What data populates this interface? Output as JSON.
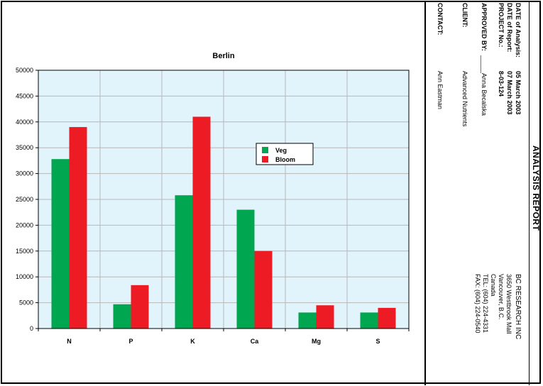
{
  "report": {
    "title": "ANALYSIS REPORT",
    "company": {
      "name": "BC RESEARCH INC",
      "address1": "3650 Westbrook Mall",
      "address2": "Vancouver, B.C.",
      "country": "Canada",
      "tel": "TEL: (604) 224-4331",
      "fax": "FAX: (604) 224-0540"
    },
    "fields": {
      "date_analysis_label": "DATE of Analysis:",
      "date_analysis_value": "05 March 2003",
      "date_report_label": "DATE of Report:",
      "date_report_value": "07 March 2003",
      "project_label": "PROJECT No.:",
      "project_value": "8-03-124",
      "approved_label": "APPROVED BY:",
      "approved_value": "_____Anna Becalska",
      "client_label": "CLIENT:",
      "client_value": "Advanced Nutrients",
      "contact_label": "CONTACT:",
      "contact_value": "Ann Eastman"
    }
  },
  "chart_data": {
    "type": "bar",
    "title": "Berlin",
    "categories": [
      "N",
      "P",
      "K",
      "Ca",
      "Mg",
      "S"
    ],
    "series": [
      {
        "name": "Veg",
        "color": "#00a650",
        "values": [
          32800,
          4700,
          25800,
          23000,
          3100,
          3100
        ]
      },
      {
        "name": "Bloom",
        "color": "#ed1c24",
        "values": [
          39000,
          8400,
          41000,
          15000,
          4500,
          4000
        ]
      }
    ],
    "ylim": [
      0,
      50000
    ],
    "yticks": [
      "0",
      "5000",
      "10000",
      "15000",
      "20000",
      "25000",
      "30000",
      "35000",
      "40000",
      "45000",
      "50000"
    ],
    "grid": true,
    "plot_background": "#e1f3fb",
    "legend": "center-right"
  }
}
